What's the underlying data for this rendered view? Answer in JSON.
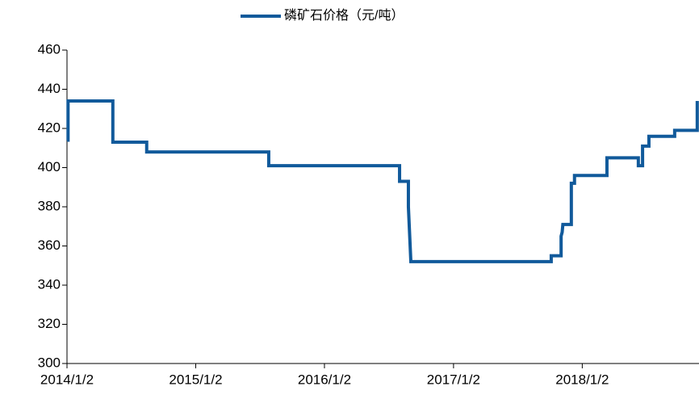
{
  "chart_data": {
    "type": "line",
    "step": true,
    "series": [
      {
        "name": "磷矿石价格（元/吨）",
        "color": "#115a9b",
        "x": [
          "2014/1/2",
          "2014/1/5",
          "2014/1/5",
          "2014/5/12",
          "2014/5/12",
          "2014/8/16",
          "2014/8/16",
          "2015/7/28",
          "2015/7/28",
          "2016/8/2",
          "2016/8/2",
          "2016/8/27",
          "2016/8/27",
          "2016/9/3",
          "2017/10/6",
          "2017/10/6",
          "2017/11/3",
          "2017/11/3",
          "2017/11/6",
          "2017/11/8",
          "2017/12/2",
          "2017/12/2",
          "2017/12/11",
          "2017/12/11",
          "2018/3/13",
          "2018/3/13",
          "2018/6/10",
          "2018/6/10",
          "2018/6/22",
          "2018/6/22",
          "2018/7/10",
          "2018/7/10",
          "2018/9/21",
          "2018/9/21",
          "2018/11/24",
          "2018/11/24"
        ],
        "values": [
          414,
          414,
          434,
          434,
          413,
          413,
          408,
          408,
          401,
          401,
          393,
          393,
          380,
          352,
          352,
          355,
          355,
          365,
          367,
          371,
          371,
          392,
          392,
          396,
          396,
          405,
          405,
          401,
          401,
          411,
          411,
          416,
          416,
          419,
          419,
          434
        ]
      }
    ],
    "xlim": [
      "2014/1/2",
      "2018/11/29"
    ],
    "xticks": [
      "2014/1/2",
      "2015/1/2",
      "2016/1/2",
      "2017/1/2",
      "2018/1/2"
    ],
    "ylim": [
      300,
      460
    ],
    "yticks": [
      300,
      320,
      340,
      360,
      380,
      400,
      420,
      440,
      460
    ],
    "legend": "top"
  }
}
